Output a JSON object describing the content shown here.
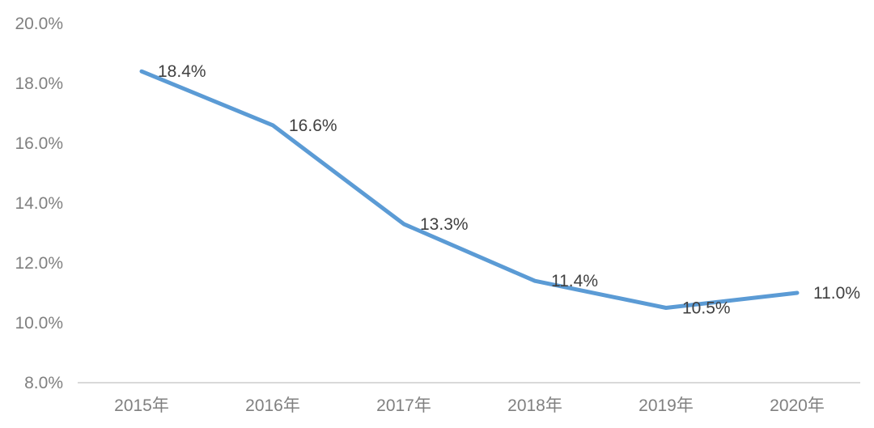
{
  "chart_data": {
    "type": "line",
    "title": "",
    "xlabel": "",
    "ylabel": "",
    "categories": [
      "2015年",
      "2016年",
      "2017年",
      "2018年",
      "2019年",
      "2020年"
    ],
    "series": [
      {
        "name": "rate",
        "values": [
          18.4,
          16.6,
          13.3,
          11.4,
          10.5,
          11.0
        ],
        "data_labels": [
          "18.4%",
          "16.6%",
          "13.3%",
          "11.4%",
          "10.5%",
          "11.0%"
        ]
      }
    ],
    "ylim": [
      8,
      20
    ],
    "y_tick_values": [
      20,
      18,
      16,
      14,
      12,
      10,
      8
    ],
    "y_tick_labels": [
      "20.0%",
      "18.0%",
      "16.0%",
      "14.0%",
      "12.0%",
      "10.0%",
      "8.0%"
    ],
    "grid": false,
    "legend": "none",
    "colors": {
      "line": "#5B9BD5",
      "axis_line": "#D9D9D9",
      "tick_label": "#808080",
      "data_label": "#404040",
      "background": "#FFFFFF"
    }
  }
}
